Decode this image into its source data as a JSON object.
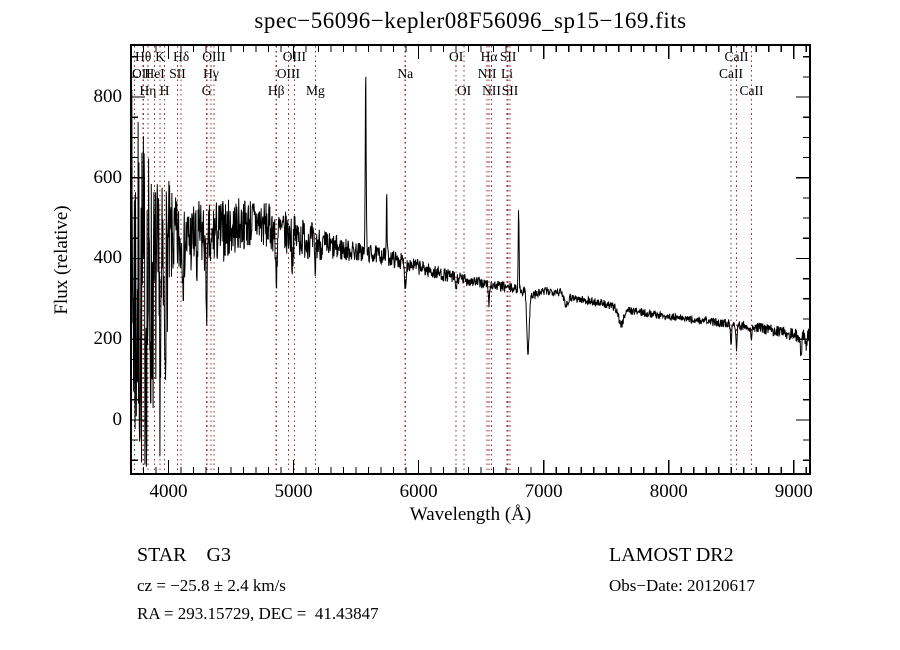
{
  "title": "spec−56096−kepler08F56096_sp15−169.fits",
  "annotations": {
    "class_label": "STAR    G3",
    "survey": "LAMOST DR2",
    "cz": "cz = −25.8 ± 2.4 km/s",
    "obs_date": "Obs−Date: 20120617",
    "coords": "RA = 293.15729, DEC =  41.43847"
  },
  "chart_data": {
    "type": "line",
    "title": "spec−56096−kepler08F56096_sp15−169.fits",
    "xlabel": "Wavelength (Å)",
    "ylabel": "Flux (relative)",
    "xlim": [
      3700,
      9130
    ],
    "ylim": [
      -134,
      929
    ],
    "x_major_ticks": [
      4000,
      5000,
      6000,
      7000,
      8000,
      9000
    ],
    "x_minor_step": 100,
    "y_major_ticks": [
      0,
      200,
      400,
      600,
      800
    ],
    "y_minor_step": 50,
    "grid": false,
    "line_color": "#000000",
    "marker_color": "#9a3332",
    "spectral_lines": [
      {
        "wavelength": 3727,
        "label": "OII",
        "row": 2
      },
      {
        "wavelength": 3798,
        "label": "Hθ",
        "row": 1
      },
      {
        "wavelength": 3835,
        "label": "Hη",
        "row": 3
      },
      {
        "wavelength": 3889,
        "label": "HeI",
        "row": 2
      },
      {
        "wavelength": 3933,
        "label": "K",
        "row": 1
      },
      {
        "wavelength": 3968,
        "label": "H",
        "row": 3
      },
      {
        "wavelength": 4072,
        "label": "SII",
        "row": 2
      },
      {
        "wavelength": 4101,
        "label": "Hδ",
        "row": 1
      },
      {
        "wavelength": 4305,
        "label": "G",
        "row": 3
      },
      {
        "wavelength": 4340,
        "label": "Hγ",
        "row": 2
      },
      {
        "wavelength": 4363,
        "label": "OIII",
        "row": 1
      },
      {
        "wavelength": 4861,
        "label": "Hβ",
        "row": 3
      },
      {
        "wavelength": 4959,
        "label": "OIII",
        "row": 2
      },
      {
        "wavelength": 5007,
        "label": "OIII",
        "row": 1
      },
      {
        "wavelength": 5175,
        "label": "Mg",
        "row": 3
      },
      {
        "wavelength": 5893,
        "label": "Na",
        "row": 2
      },
      {
        "wavelength": 6300,
        "label": "OI",
        "row": 1
      },
      {
        "wavelength": 6363,
        "label": "OI",
        "row": 3
      },
      {
        "wavelength": 6548,
        "label": "NII",
        "row": 2
      },
      {
        "wavelength": 6563,
        "label": "Hα",
        "row": 1
      },
      {
        "wavelength": 6583,
        "label": "NII",
        "row": 3
      },
      {
        "wavelength": 6707,
        "label": "Li",
        "row": 2
      },
      {
        "wavelength": 6716,
        "label": "SII",
        "row": 1
      },
      {
        "wavelength": 6731,
        "label": "SII",
        "row": 3
      },
      {
        "wavelength": 8498,
        "label": "CaII",
        "row": 2
      },
      {
        "wavelength": 8542,
        "label": "CaII",
        "row": 1
      },
      {
        "wavelength": 8662,
        "label": "CaII",
        "row": 3
      }
    ],
    "continuum": [
      [
        3700,
        350
      ],
      [
        3760,
        280
      ],
      [
        3860,
        300
      ],
      [
        3920,
        335
      ],
      [
        3980,
        400
      ],
      [
        4030,
        450
      ],
      [
        4100,
        442
      ],
      [
        4250,
        455
      ],
      [
        4400,
        465
      ],
      [
        4550,
        482
      ],
      [
        4700,
        492
      ],
      [
        4850,
        472
      ],
      [
        5000,
        456
      ],
      [
        5100,
        450
      ],
      [
        5250,
        432
      ],
      [
        5400,
        422
      ],
      [
        5550,
        415
      ],
      [
        5700,
        408
      ],
      [
        5900,
        390
      ],
      [
        6100,
        368
      ],
      [
        6300,
        352
      ],
      [
        6550,
        336
      ],
      [
        6750,
        326
      ],
      [
        6860,
        318
      ],
      [
        6890,
        306
      ],
      [
        7000,
        318
      ],
      [
        7100,
        320
      ],
      [
        7200,
        306
      ],
      [
        7300,
        298
      ],
      [
        7450,
        290
      ],
      [
        7600,
        276
      ],
      [
        7800,
        266
      ],
      [
        8000,
        256
      ],
      [
        8200,
        248
      ],
      [
        8350,
        243
      ],
      [
        8500,
        238
      ],
      [
        8700,
        229
      ],
      [
        8900,
        219
      ],
      [
        9050,
        208
      ],
      [
        9130,
        212
      ]
    ],
    "noise_amplitude": [
      [
        3700,
        500
      ],
      [
        3770,
        470
      ],
      [
        3830,
        420
      ],
      [
        3880,
        300
      ],
      [
        3940,
        260
      ],
      [
        3990,
        200
      ],
      [
        4030,
        110
      ],
      [
        4150,
        95
      ],
      [
        4350,
        85
      ],
      [
        4600,
        65
      ],
      [
        4900,
        55
      ],
      [
        5100,
        50
      ],
      [
        5300,
        35
      ],
      [
        5500,
        25
      ],
      [
        5700,
        22
      ],
      [
        5900,
        20
      ],
      [
        6200,
        17
      ],
      [
        6500,
        14
      ],
      [
        6800,
        12
      ],
      [
        7200,
        11
      ],
      [
        7800,
        10
      ],
      [
        8300,
        10
      ],
      [
        8700,
        12
      ],
      [
        9000,
        16
      ],
      [
        9130,
        22
      ]
    ],
    "features": [
      [
        5577,
        465,
        3.5
      ],
      [
        5745,
        150,
        3
      ],
      [
        6800,
        200,
        3.5
      ],
      [
        6875,
        -145,
        9
      ],
      [
        4861,
        -110,
        7
      ],
      [
        4305,
        -150,
        8
      ],
      [
        4340,
        -60,
        6
      ],
      [
        3933,
        -180,
        8
      ],
      [
        3968,
        -160,
        7
      ],
      [
        4226,
        -90,
        4
      ],
      [
        4120,
        -70,
        4
      ],
      [
        4990,
        -70,
        4
      ],
      [
        5172,
        -70,
        5
      ],
      [
        5893,
        -55,
        7
      ],
      [
        6300,
        -30,
        5
      ],
      [
        6563,
        -45,
        5
      ],
      [
        7180,
        -22,
        14
      ],
      [
        7620,
        -40,
        18
      ],
      [
        8498,
        -55,
        4
      ],
      [
        8542,
        -60,
        4
      ],
      [
        8662,
        -35,
        4
      ],
      [
        9060,
        -45,
        6
      ],
      [
        9100,
        -35,
        4
      ]
    ],
    "sample_step": 3,
    "random_seed": 7
  }
}
